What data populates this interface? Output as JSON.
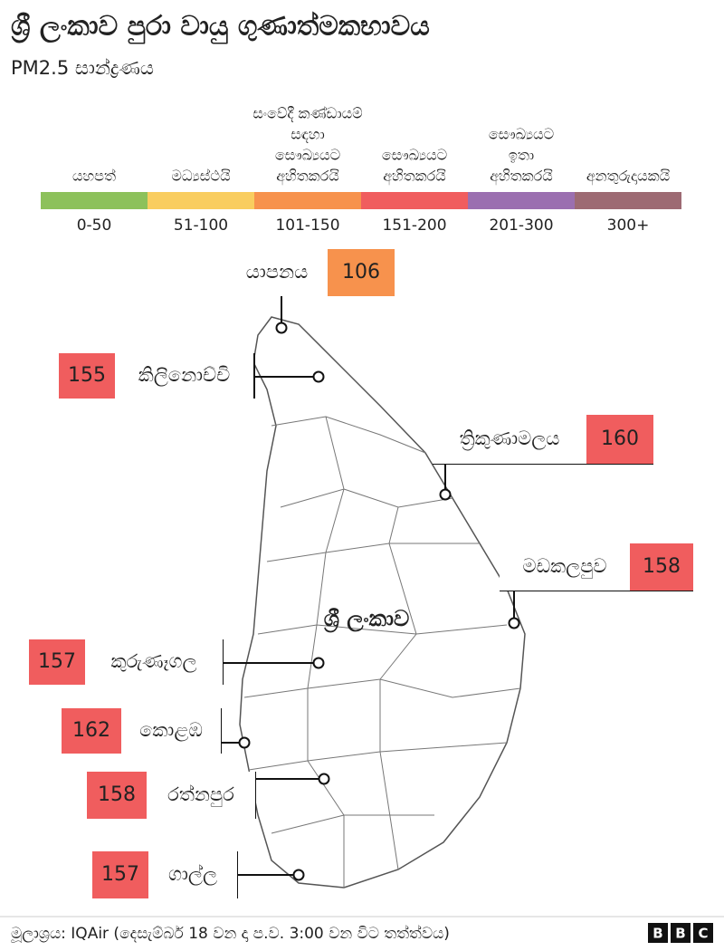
{
  "header": {
    "title": "ශ්‍රී ලංකාව පුරා වායු ගුණාත්මකභාවය",
    "subtitle": "PM2.5 සාන්ද්‍රණය"
  },
  "legend": [
    {
      "label": [
        "යහපත්"
      ],
      "range": "0-50",
      "color": "#8dc15b"
    },
    {
      "label": [
        "මධ්‍යස්ථයි"
      ],
      "range": "51-100",
      "color": "#f9cd5f"
    },
    {
      "label": [
        "සංවේදී කණ්ඩායම්",
        "සඳහා",
        "සෞඛ්‍යයට",
        "අහිතකරයි"
      ],
      "range": "101-150",
      "color": "#f7924d"
    },
    {
      "label": [
        "සෞඛ්‍යයට",
        "අහිතකරයි"
      ],
      "range": "151-200",
      "color": "#f05d5e"
    },
    {
      "label": [
        "සෞඛ්‍යයට",
        "ඉතා",
        "අහිතකරයි"
      ],
      "range": "201-300",
      "color": "#9b6fb0"
    },
    {
      "label": [
        "අනතුරුදායකයි"
      ],
      "range": "300+",
      "color": "#9d6a73"
    }
  ],
  "map_label": "ශ්‍රී ලංකාව",
  "cities": [
    {
      "name": "යාපනය",
      "value": 106,
      "color": "#f7924d"
    },
    {
      "name": "කිලිනොච්චි",
      "value": 155,
      "color": "#f05d5e"
    },
    {
      "name": "ත්‍රිකුණාමලය",
      "value": 160,
      "color": "#f05d5e"
    },
    {
      "name": "මඩකලපුව",
      "value": 158,
      "color": "#f05d5e"
    },
    {
      "name": "කුරුණෑගල",
      "value": 157,
      "color": "#f05d5e"
    },
    {
      "name": "කොළඹ",
      "value": 162,
      "color": "#f05d5e"
    },
    {
      "name": "රත්නපුර",
      "value": 158,
      "color": "#f05d5e"
    },
    {
      "name": "ගාල්ල",
      "value": 157,
      "color": "#f05d5e"
    }
  ],
  "footer": {
    "source": "මූලාශ්‍රය: IQAir (දෙසැම්බර් 18 වන දා ප.ව. 3:00 වන විට තත්ත්වය)",
    "logo": [
      "B",
      "B",
      "C"
    ]
  }
}
